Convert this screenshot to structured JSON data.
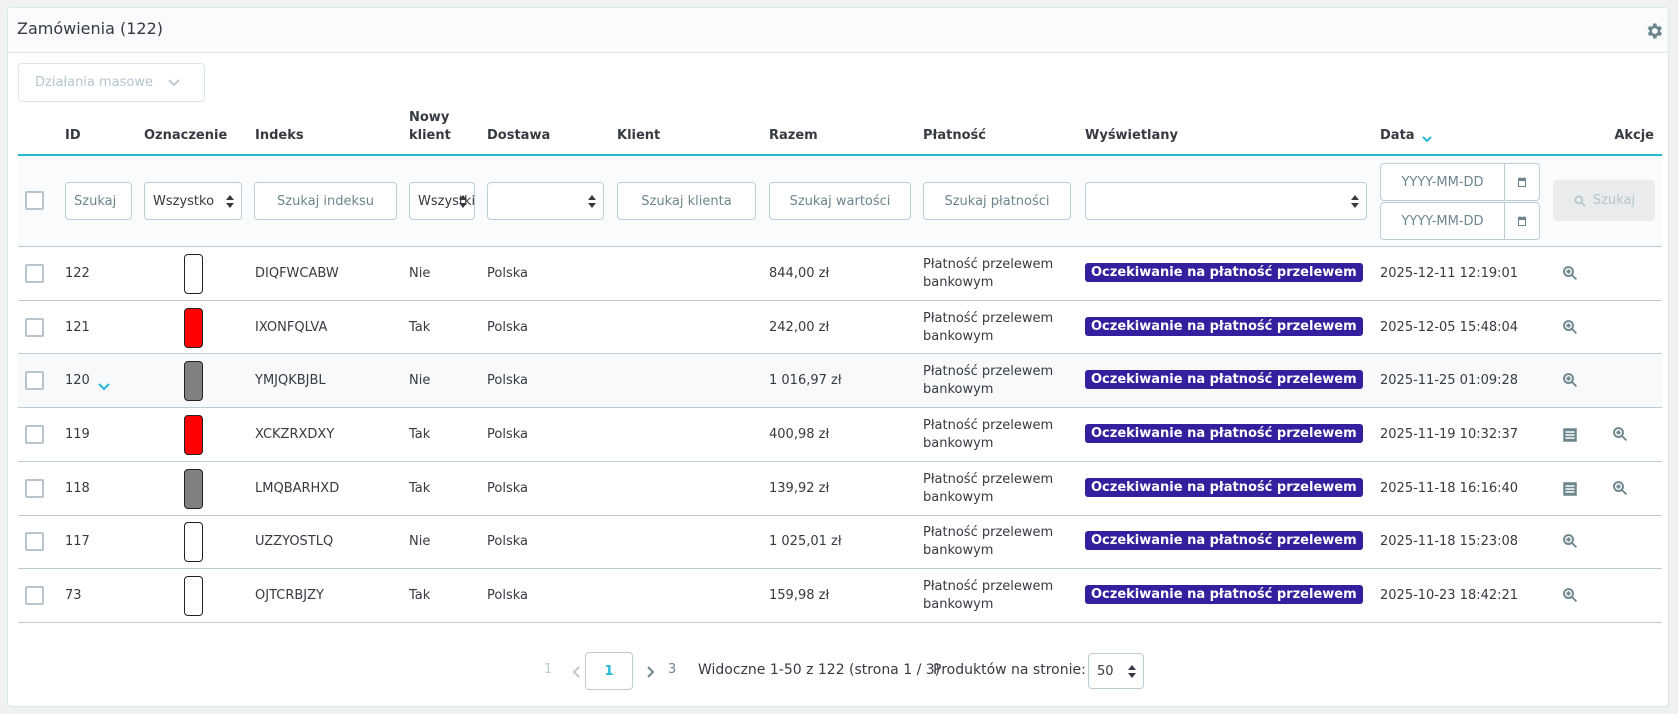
{
  "header": {
    "title": "Zamówienia (122)"
  },
  "bulk_actions": "Działania masowe",
  "columns": [
    "ID",
    "Oznaczenie",
    "Indeks",
    "Nowy klient",
    "Dostawa",
    "Klient",
    "Razem",
    "Płatność",
    "Wyświetlany",
    "Data",
    "Akcje"
  ],
  "filters": {
    "id": "Szukaj",
    "marker": "Wszystko",
    "reference": "Szukaj indeksu",
    "new_client": "Wszystkie",
    "customer": "Szukaj klienta",
    "total": "Szukaj wartości",
    "payment": "Szukaj płatności",
    "date_from": "YYYY-MM-DD",
    "date_to": "YYYY-MM-DD",
    "search_button": "Szukaj"
  },
  "rows": [
    {
      "id": "122",
      "color": "#ffffff",
      "reference": "DIQFWCABW",
      "new_client": "Nie",
      "delivery": "Polska",
      "total": "844,00 zł",
      "payment": "Płatność przelewem bankowym",
      "status": "Oczekiwanie na płatność przelewem",
      "date": "2025-12-11 12:19:01",
      "invoice": false
    },
    {
      "id": "121",
      "color": "#ff0000",
      "reference": "IXONFQLVA",
      "new_client": "Tak",
      "delivery": "Polska",
      "total": "242,00 zł",
      "payment": "Płatność przelewem bankowym",
      "status": "Oczekiwanie na płatność przelewem",
      "date": "2025-12-05 15:48:04",
      "invoice": false
    },
    {
      "id": "120",
      "color": "#808080",
      "reference": "YMJQKBJBL",
      "new_client": "Nie",
      "delivery": "Polska",
      "total": "1 016,97 zł",
      "payment": "Płatność przelewem bankowym",
      "status": "Oczekiwanie na płatność przelewem",
      "date": "2025-11-25 01:09:28",
      "invoice": false,
      "expandable": true
    },
    {
      "id": "119",
      "color": "#ff0000",
      "reference": "XCKZRXDXY",
      "new_client": "Tak",
      "delivery": "Polska",
      "total": "400,98 zł",
      "payment": "Płatność przelewem bankowym",
      "status": "Oczekiwanie na płatność przelewem",
      "date": "2025-11-19 10:32:37",
      "invoice": true
    },
    {
      "id": "118",
      "color": "#808080",
      "reference": "LMQBARHXD",
      "new_client": "Tak",
      "delivery": "Polska",
      "total": "139,92 zł",
      "payment": "Płatność przelewem bankowym",
      "status": "Oczekiwanie na płatność przelewem",
      "date": "2025-11-18 16:16:40",
      "invoice": true
    },
    {
      "id": "117",
      "color": "#ffffff",
      "reference": "UZZYOSTLQ",
      "new_client": "Nie",
      "delivery": "Polska",
      "total": "1 025,01 zł",
      "payment": "Płatność przelewem bankowym",
      "status": "Oczekiwanie na płatność przelewem",
      "date": "2025-11-18 15:23:08",
      "invoice": false
    },
    {
      "id": "73",
      "color": "#ffffff",
      "reference": "OJTCRBJZY",
      "new_client": "Tak",
      "delivery": "Polska",
      "total": "159,98 zł",
      "payment": "Płatność przelewem bankowym",
      "status": "Oczekiwanie na płatność przelewem",
      "date": "2025-10-23 18:42:21",
      "invoice": false
    }
  ],
  "pagination": {
    "first": "1",
    "current": "1",
    "last": "3",
    "info": "Widoczne 1-50 z 122 (strona 1 / 3)",
    "per_page_label": "Produktów na stronie:",
    "per_page": "50"
  }
}
